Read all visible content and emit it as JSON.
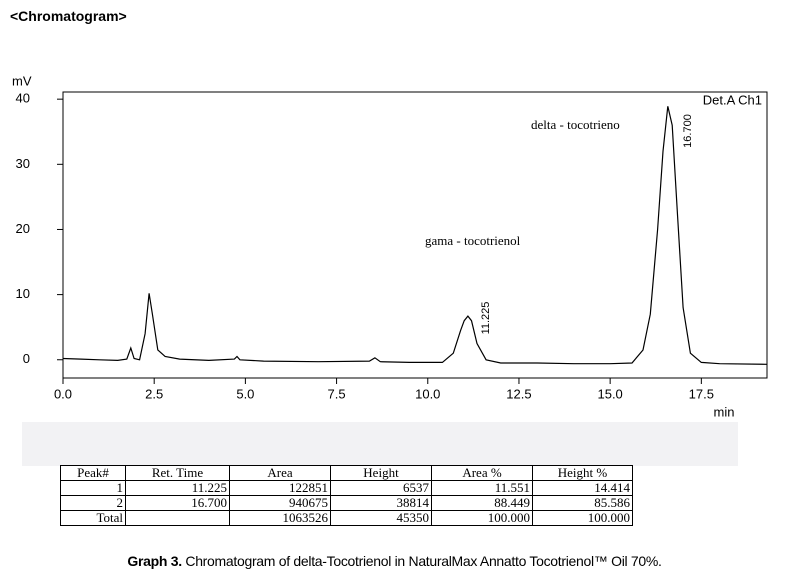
{
  "header": {
    "title": "<Chromatogram>"
  },
  "chart_data": {
    "type": "line",
    "y_label": "mV",
    "x_label": "min",
    "channel_label": "Det.A Ch1",
    "peak_names": [
      "gama - tocotrienol",
      "delta - tocotrieno"
    ],
    "peak_time_labels": [
      "11.225",
      "16.700"
    ],
    "color": "#000000",
    "x": [
      0,
      0.5,
      1.0,
      1.5,
      1.75,
      1.86,
      1.95,
      2.1,
      2.25,
      2.36,
      2.45,
      2.6,
      2.8,
      3.2,
      4.0,
      4.7,
      4.77,
      4.85,
      5.5,
      7.0,
      8.4,
      8.55,
      8.7,
      9.5,
      10.4,
      10.7,
      10.9,
      11.0,
      11.1,
      11.2,
      11.35,
      11.6,
      12.0,
      13.0,
      14.0,
      15.0,
      15.6,
      15.9,
      16.1,
      16.3,
      16.45,
      16.58,
      16.7,
      16.85,
      17.0,
      17.2,
      17.5,
      18.0,
      19.3
    ],
    "values": [
      0.2,
      0.1,
      0.0,
      -0.1,
      0.1,
      1.8,
      0.2,
      0.0,
      4.0,
      10.2,
      7.0,
      1.5,
      0.5,
      0.1,
      -0.1,
      0.1,
      0.5,
      0.0,
      -0.2,
      -0.3,
      -0.2,
      0.3,
      -0.3,
      -0.4,
      -0.4,
      1.0,
      4.5,
      6.0,
      6.7,
      6.0,
      2.5,
      0.0,
      -0.5,
      -0.5,
      -0.6,
      -0.6,
      -0.5,
      1.5,
      7.0,
      20.0,
      32.0,
      38.9,
      36.0,
      22.0,
      8.0,
      1.0,
      -0.4,
      -0.6,
      -0.7
    ],
    "xlim": [
      0,
      19.3
    ],
    "ylim": [
      -2.8,
      41.1
    ],
    "xticks": [
      {
        "value": 0,
        "label": "0.0"
      },
      2.5,
      {
        "value": 5,
        "label": "5.0"
      },
      7.5,
      {
        "value": 10,
        "label": "10.0"
      },
      12.5,
      {
        "value": 15,
        "label": "15.0"
      },
      17.5
    ],
    "yticks": [
      0,
      10,
      20,
      30,
      40
    ]
  },
  "table": {
    "columns": [
      "Peak#",
      "Ret. Time",
      "Area",
      "Height",
      "Area %",
      "Height %"
    ],
    "rows": [
      [
        "1",
        "11.225",
        "122851",
        "6537",
        "11.551",
        "14.414"
      ],
      [
        "2",
        "16.700",
        "940675",
        "38814",
        "88.449",
        "85.586"
      ],
      [
        "Total",
        null,
        "1063526",
        "45350",
        "100.000",
        "100.000"
      ]
    ]
  },
  "caption": {
    "label": "Graph 3.",
    "text": "Chromatogram of delta-Tocotrienol in NaturalMax Annatto Tocotrienol™ Oil 70%."
  }
}
